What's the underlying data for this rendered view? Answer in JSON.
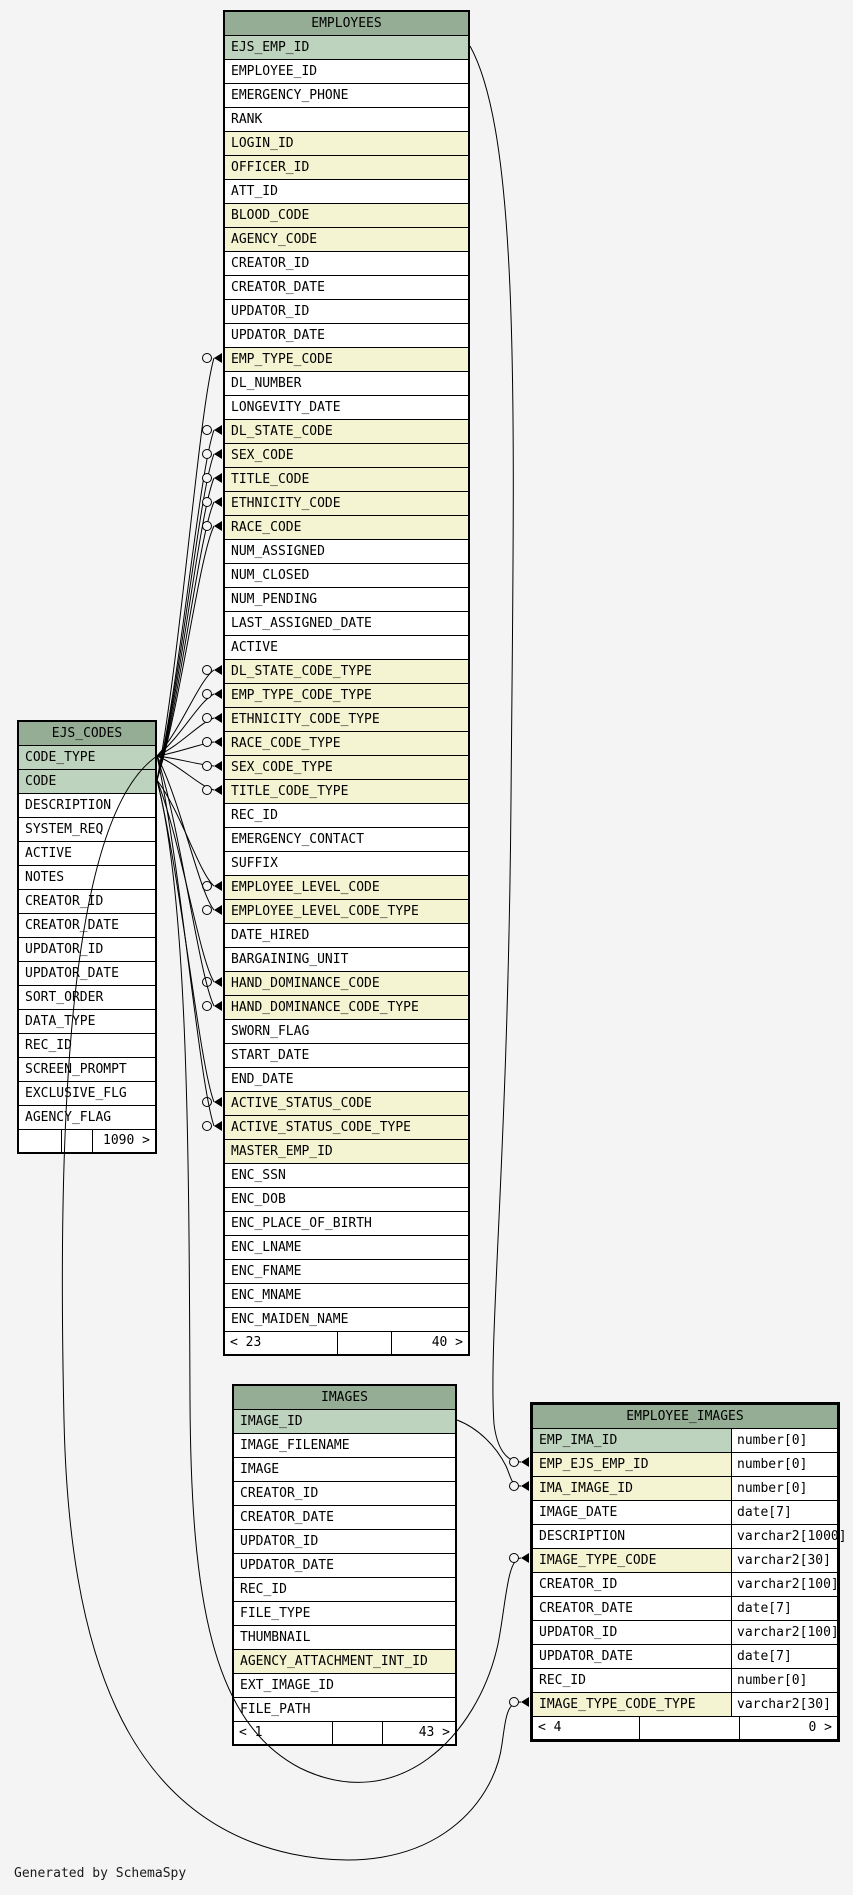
{
  "diagram": {
    "generator_note": "Generated by SchemaSpy",
    "colors": {
      "header": "#95ad95",
      "primary_key_row": "#bed3be",
      "foreign_key_row": "#f4f4d2",
      "row": "#ffffff",
      "canvas": "#f4f4f4",
      "line": "#000000"
    },
    "tables": [
      {
        "id": "employees",
        "name": "EMPLOYEES",
        "columns": [
          {
            "n": "EJS_EMP_ID",
            "k": "pk"
          },
          {
            "n": "EMPLOYEE_ID"
          },
          {
            "n": "EMERGENCY_PHONE"
          },
          {
            "n": "RANK"
          },
          {
            "n": "LOGIN_ID",
            "k": "fk"
          },
          {
            "n": "OFFICER_ID",
            "k": "fk"
          },
          {
            "n": "ATT_ID"
          },
          {
            "n": "BLOOD_CODE",
            "k": "fk"
          },
          {
            "n": "AGENCY_CODE",
            "k": "fk"
          },
          {
            "n": "CREATOR_ID"
          },
          {
            "n": "CREATOR_DATE"
          },
          {
            "n": "UPDATOR_ID"
          },
          {
            "n": "UPDATOR_DATE"
          },
          {
            "n": "EMP_TYPE_CODE",
            "k": "fk"
          },
          {
            "n": "DL_NUMBER"
          },
          {
            "n": "LONGEVITY_DATE"
          },
          {
            "n": "DL_STATE_CODE",
            "k": "fk"
          },
          {
            "n": "SEX_CODE",
            "k": "fk"
          },
          {
            "n": "TITLE_CODE",
            "k": "fk"
          },
          {
            "n": "ETHNICITY_CODE",
            "k": "fk"
          },
          {
            "n": "RACE_CODE",
            "k": "fk"
          },
          {
            "n": "NUM_ASSIGNED"
          },
          {
            "n": "NUM_CLOSED"
          },
          {
            "n": "NUM_PENDING"
          },
          {
            "n": "LAST_ASSIGNED_DATE"
          },
          {
            "n": "ACTIVE"
          },
          {
            "n": "DL_STATE_CODE_TYPE",
            "k": "fk"
          },
          {
            "n": "EMP_TYPE_CODE_TYPE",
            "k": "fk"
          },
          {
            "n": "ETHNICITY_CODE_TYPE",
            "k": "fk"
          },
          {
            "n": "RACE_CODE_TYPE",
            "k": "fk"
          },
          {
            "n": "SEX_CODE_TYPE",
            "k": "fk"
          },
          {
            "n": "TITLE_CODE_TYPE",
            "k": "fk"
          },
          {
            "n": "REC_ID"
          },
          {
            "n": "EMERGENCY_CONTACT"
          },
          {
            "n": "SUFFIX"
          },
          {
            "n": "EMPLOYEE_LEVEL_CODE",
            "k": "fk"
          },
          {
            "n": "EMPLOYEE_LEVEL_CODE_TYPE",
            "k": "fk"
          },
          {
            "n": "DATE_HIRED"
          },
          {
            "n": "BARGAINING_UNIT"
          },
          {
            "n": "HAND_DOMINANCE_CODE",
            "k": "fk"
          },
          {
            "n": "HAND_DOMINANCE_CODE_TYPE",
            "k": "fk"
          },
          {
            "n": "SWORN_FLAG"
          },
          {
            "n": "START_DATE"
          },
          {
            "n": "END_DATE"
          },
          {
            "n": "ACTIVE_STATUS_CODE",
            "k": "fk"
          },
          {
            "n": "ACTIVE_STATUS_CODE_TYPE",
            "k": "fk"
          },
          {
            "n": "MASTER_EMP_ID",
            "k": "fk"
          },
          {
            "n": "ENC_SSN"
          },
          {
            "n": "ENC_DOB"
          },
          {
            "n": "ENC_PLACE_OF_BIRTH"
          },
          {
            "n": "ENC_LNAME"
          },
          {
            "n": "ENC_FNAME"
          },
          {
            "n": "ENC_MNAME"
          },
          {
            "n": "ENC_MAIDEN_NAME"
          }
        ],
        "footer": {
          "left": "< 23",
          "middle": "",
          "right": "40 >"
        }
      },
      {
        "id": "ejs_codes",
        "name": "EJS_CODES",
        "columns": [
          {
            "n": "CODE_TYPE",
            "k": "pk"
          },
          {
            "n": "CODE",
            "k": "pk"
          },
          {
            "n": "DESCRIPTION"
          },
          {
            "n": "SYSTEM_REQ"
          },
          {
            "n": "ACTIVE"
          },
          {
            "n": "NOTES"
          },
          {
            "n": "CREATOR_ID"
          },
          {
            "n": "CREATOR_DATE"
          },
          {
            "n": "UPDATOR_ID"
          },
          {
            "n": "UPDATOR_DATE"
          },
          {
            "n": "SORT_ORDER"
          },
          {
            "n": "DATA_TYPE"
          },
          {
            "n": "REC_ID"
          },
          {
            "n": "SCREEN_PROMPT"
          },
          {
            "n": "EXCLUSIVE_FLG"
          },
          {
            "n": "AGENCY_FLAG"
          }
        ],
        "footer": {
          "left": "",
          "middle": "",
          "right": "1090 >"
        }
      },
      {
        "id": "images",
        "name": "IMAGES",
        "columns": [
          {
            "n": "IMAGE_ID",
            "k": "pk"
          },
          {
            "n": "IMAGE_FILENAME"
          },
          {
            "n": "IMAGE"
          },
          {
            "n": "CREATOR_ID"
          },
          {
            "n": "CREATOR_DATE"
          },
          {
            "n": "UPDATOR_ID"
          },
          {
            "n": "UPDATOR_DATE"
          },
          {
            "n": "REC_ID"
          },
          {
            "n": "FILE_TYPE"
          },
          {
            "n": "THUMBNAIL"
          },
          {
            "n": "AGENCY_ATTACHMENT_INT_ID",
            "k": "fk"
          },
          {
            "n": "EXT_IMAGE_ID"
          },
          {
            "n": "FILE_PATH"
          }
        ],
        "footer": {
          "left": "< 1",
          "middle": "",
          "right": "43 >"
        }
      },
      {
        "id": "employee_images",
        "name": "EMPLOYEE_IMAGES",
        "emphasized": true,
        "columns": [
          {
            "n": "EMP_IMA_ID",
            "t": "number[0]",
            "k": "pk"
          },
          {
            "n": "EMP_EJS_EMP_ID",
            "t": "number[0]",
            "k": "fk"
          },
          {
            "n": "IMA_IMAGE_ID",
            "t": "number[0]",
            "k": "fk"
          },
          {
            "n": "IMAGE_DATE",
            "t": "date[7]"
          },
          {
            "n": "DESCRIPTION",
            "t": "varchar2[1000]"
          },
          {
            "n": "IMAGE_TYPE_CODE",
            "t": "varchar2[30]",
            "k": "fk"
          },
          {
            "n": "CREATOR_ID",
            "t": "varchar2[100]"
          },
          {
            "n": "CREATOR_DATE",
            "t": "date[7]"
          },
          {
            "n": "UPDATOR_ID",
            "t": "varchar2[100]"
          },
          {
            "n": "UPDATOR_DATE",
            "t": "date[7]"
          },
          {
            "n": "REC_ID",
            "t": "number[0]"
          },
          {
            "n": "IMAGE_TYPE_CODE_TYPE",
            "t": "varchar2[30]",
            "k": "fk"
          }
        ],
        "footer": {
          "left": "< 4",
          "middle": "",
          "right": "0 >"
        }
      }
    ],
    "relationships": [
      {
        "from": "ejs_codes.CODE",
        "to": "employees.EMP_TYPE_CODE",
        "route": "fan"
      },
      {
        "from": "ejs_codes.CODE",
        "to": "employees.DL_STATE_CODE",
        "route": "fan"
      },
      {
        "from": "ejs_codes.CODE",
        "to": "employees.SEX_CODE",
        "route": "fan"
      },
      {
        "from": "ejs_codes.CODE",
        "to": "employees.TITLE_CODE",
        "route": "fan"
      },
      {
        "from": "ejs_codes.CODE",
        "to": "employees.ETHNICITY_CODE",
        "route": "fan"
      },
      {
        "from": "ejs_codes.CODE",
        "to": "employees.RACE_CODE",
        "route": "fan"
      },
      {
        "from": "ejs_codes.CODE_TYPE",
        "to": "employees.DL_STATE_CODE_TYPE",
        "route": "fan"
      },
      {
        "from": "ejs_codes.CODE_TYPE",
        "to": "employees.EMP_TYPE_CODE_TYPE",
        "route": "fan"
      },
      {
        "from": "ejs_codes.CODE_TYPE",
        "to": "employees.ETHNICITY_CODE_TYPE",
        "route": "fan"
      },
      {
        "from": "ejs_codes.CODE_TYPE",
        "to": "employees.RACE_CODE_TYPE",
        "route": "fan"
      },
      {
        "from": "ejs_codes.CODE_TYPE",
        "to": "employees.SEX_CODE_TYPE",
        "route": "fan"
      },
      {
        "from": "ejs_codes.CODE_TYPE",
        "to": "employees.TITLE_CODE_TYPE",
        "route": "fan"
      },
      {
        "from": "ejs_codes.CODE",
        "to": "employees.EMPLOYEE_LEVEL_CODE",
        "route": "fan"
      },
      {
        "from": "ejs_codes.CODE_TYPE",
        "to": "employees.EMPLOYEE_LEVEL_CODE_TYPE",
        "route": "fan"
      },
      {
        "from": "ejs_codes.CODE",
        "to": "employees.HAND_DOMINANCE_CODE",
        "route": "fan"
      },
      {
        "from": "ejs_codes.CODE_TYPE",
        "to": "employees.HAND_DOMINANCE_CODE_TYPE",
        "route": "fan"
      },
      {
        "from": "ejs_codes.CODE",
        "to": "employees.ACTIVE_STATUS_CODE",
        "route": "fan"
      },
      {
        "from": "ejs_codes.CODE_TYPE",
        "to": "employees.ACTIVE_STATUS_CODE_TYPE",
        "route": "fan"
      },
      {
        "from": "employees.EJS_EMP_ID",
        "to": "employee_images.EMP_EJS_EMP_ID",
        "route": "right_arc"
      },
      {
        "from": "images.IMAGE_ID",
        "to": "employee_images.IMA_IMAGE_ID",
        "route": "short_arc"
      },
      {
        "from": "ejs_codes.CODE",
        "to": "employee_images.IMAGE_TYPE_CODE",
        "route": "bottom_inner"
      },
      {
        "from": "ejs_codes.CODE_TYPE",
        "to": "employee_images.IMAGE_TYPE_CODE_TYPE",
        "route": "bottom_outer"
      }
    ]
  }
}
